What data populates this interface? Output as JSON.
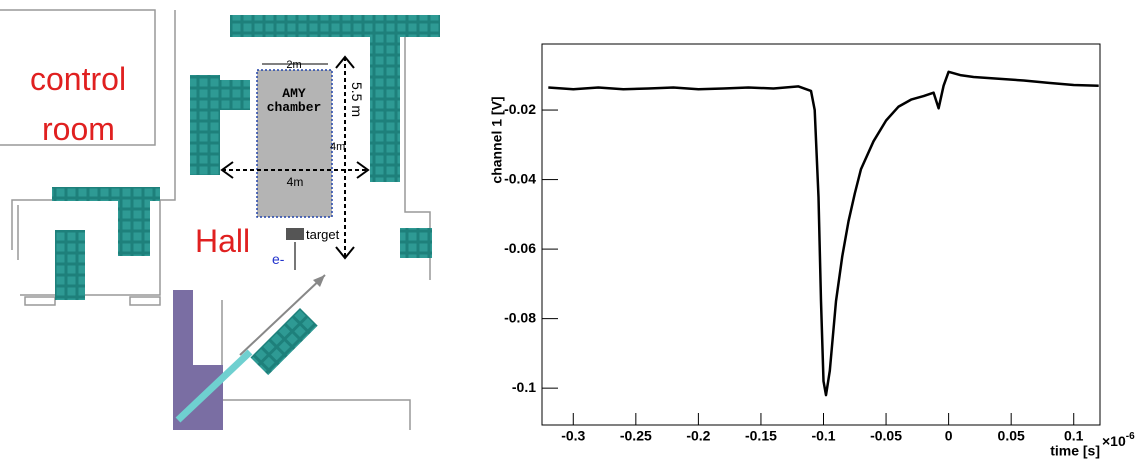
{
  "diagram": {
    "room_label": [
      "control",
      "room"
    ],
    "hall_label": "Hall",
    "chamber_label": [
      "AMY",
      "chamber"
    ],
    "chamber_width_top": "2m",
    "chamber_height": "5.5 m",
    "chamber_side": "4m",
    "chamber_width": "4m",
    "target_label": "target",
    "beam_label": "e-"
  },
  "chart_data": {
    "type": "line",
    "x_label": "time [s]",
    "y_label": "channel 1 [V]",
    "x_scale_label": {
      "base": "×10",
      "exponent": "-6"
    },
    "xlim": [
      -0.325,
      0.121
    ],
    "ylim": [
      -0.1106,
      -0.001
    ],
    "xticks": [
      -0.3,
      -0.25,
      -0.2,
      -0.15,
      -0.1,
      -0.05,
      0,
      0.05,
      0.1
    ],
    "yticks": [
      -0.02,
      -0.04,
      -0.06,
      -0.08,
      -0.1
    ],
    "x": [
      -0.32,
      -0.3,
      -0.28,
      -0.26,
      -0.24,
      -0.22,
      -0.2,
      -0.18,
      -0.16,
      -0.14,
      -0.12,
      -0.11,
      -0.107,
      -0.104,
      -0.102,
      -0.1,
      -0.098,
      -0.095,
      -0.09,
      -0.085,
      -0.08,
      -0.075,
      -0.07,
      -0.06,
      -0.05,
      -0.04,
      -0.03,
      -0.02,
      -0.012,
      -0.008,
      -0.004,
      0,
      0.01,
      0.02,
      0.04,
      0.06,
      0.08,
      0.1,
      0.12
    ],
    "series": [
      {
        "color": "#000000",
        "values": [
          -0.0135,
          -0.014,
          -0.0135,
          -0.014,
          -0.0138,
          -0.0135,
          -0.014,
          -0.0138,
          -0.0135,
          -0.0138,
          -0.0132,
          -0.0145,
          -0.02,
          -0.045,
          -0.075,
          -0.098,
          -0.102,
          -0.095,
          -0.075,
          -0.062,
          -0.052,
          -0.044,
          -0.037,
          -0.029,
          -0.023,
          -0.019,
          -0.017,
          -0.016,
          -0.015,
          -0.0195,
          -0.013,
          -0.009,
          -0.01,
          -0.0105,
          -0.011,
          -0.0115,
          -0.0122,
          -0.0128,
          -0.013
        ]
      }
    ]
  }
}
